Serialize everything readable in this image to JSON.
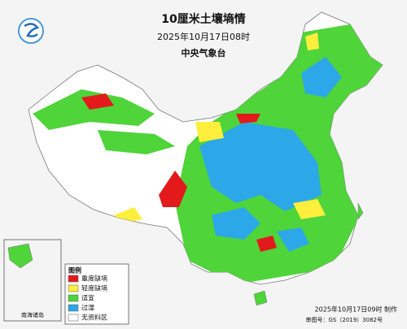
{
  "header": {
    "title": "10厘米土壤墒情",
    "datetime": "2025年10月17日08时",
    "issuer": "中央气象台"
  },
  "legend": {
    "title": "图例",
    "items": [
      {
        "label": "重度缺墒",
        "color": "#e31a1c"
      },
      {
        "label": "轻度缺墒",
        "color": "#ffef3c"
      },
      {
        "label": "适宜",
        "color": "#4fd43a"
      },
      {
        "label": "过湿",
        "color": "#2ca8e8"
      },
      {
        "label": "无资料区",
        "color": "#ffffff"
      }
    ]
  },
  "inset": {
    "label": "南海诸岛"
  },
  "footer": {
    "made": "2025年10月17日09时 制作",
    "approval": "审图号：GS（2019）3082号"
  }
}
